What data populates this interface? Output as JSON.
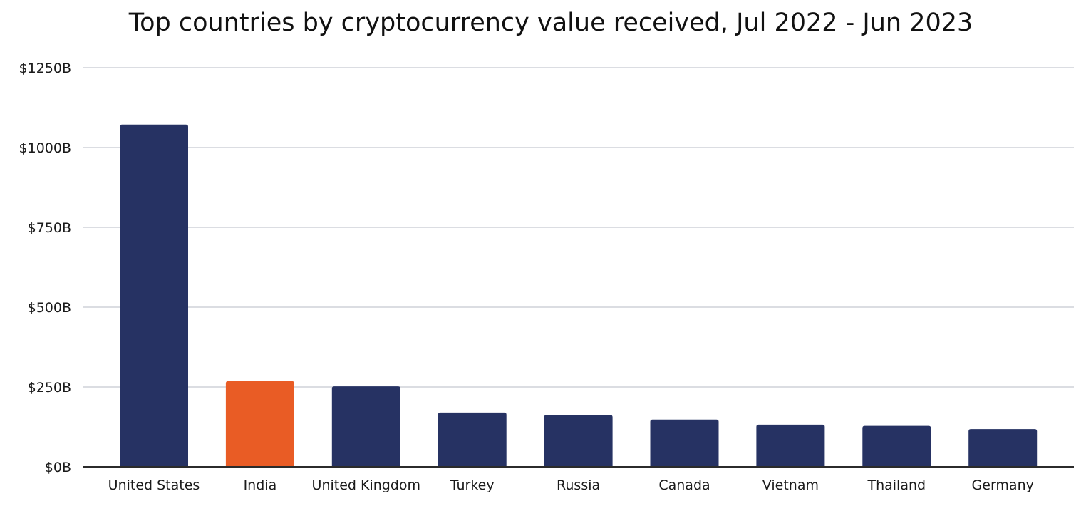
{
  "chart_data": {
    "type": "bar",
    "title": "Top countries by cryptocurrency value received, Jul 2022 - Jun 2023",
    "xlabel": "",
    "ylabel": "",
    "ylim": [
      0,
      1250
    ],
    "y_ticks": [
      {
        "value": 0,
        "label": "$0B"
      },
      {
        "value": 250,
        "label": "$250B"
      },
      {
        "value": 500,
        "label": "$500B"
      },
      {
        "value": 750,
        "label": "$750B"
      },
      {
        "value": 1000,
        "label": "$1000B"
      },
      {
        "value": 1250,
        "label": "$1250B"
      }
    ],
    "grid": true,
    "legend": "none",
    "categories": [
      "United States",
      "India",
      "United Kingdom",
      "Turkey",
      "Russia",
      "Canada",
      "Vietnam",
      "Thailand",
      "Germany"
    ],
    "values": [
      1072,
      268,
      252,
      170,
      162,
      148,
      132,
      128,
      118
    ],
    "bar_colors": [
      "#263263",
      "#E95C25",
      "#263263",
      "#263263",
      "#263263",
      "#263263",
      "#263263",
      "#263263",
      "#263263"
    ],
    "grid_color": "#cfd2d8",
    "axis_color": "#2b2b2b"
  }
}
